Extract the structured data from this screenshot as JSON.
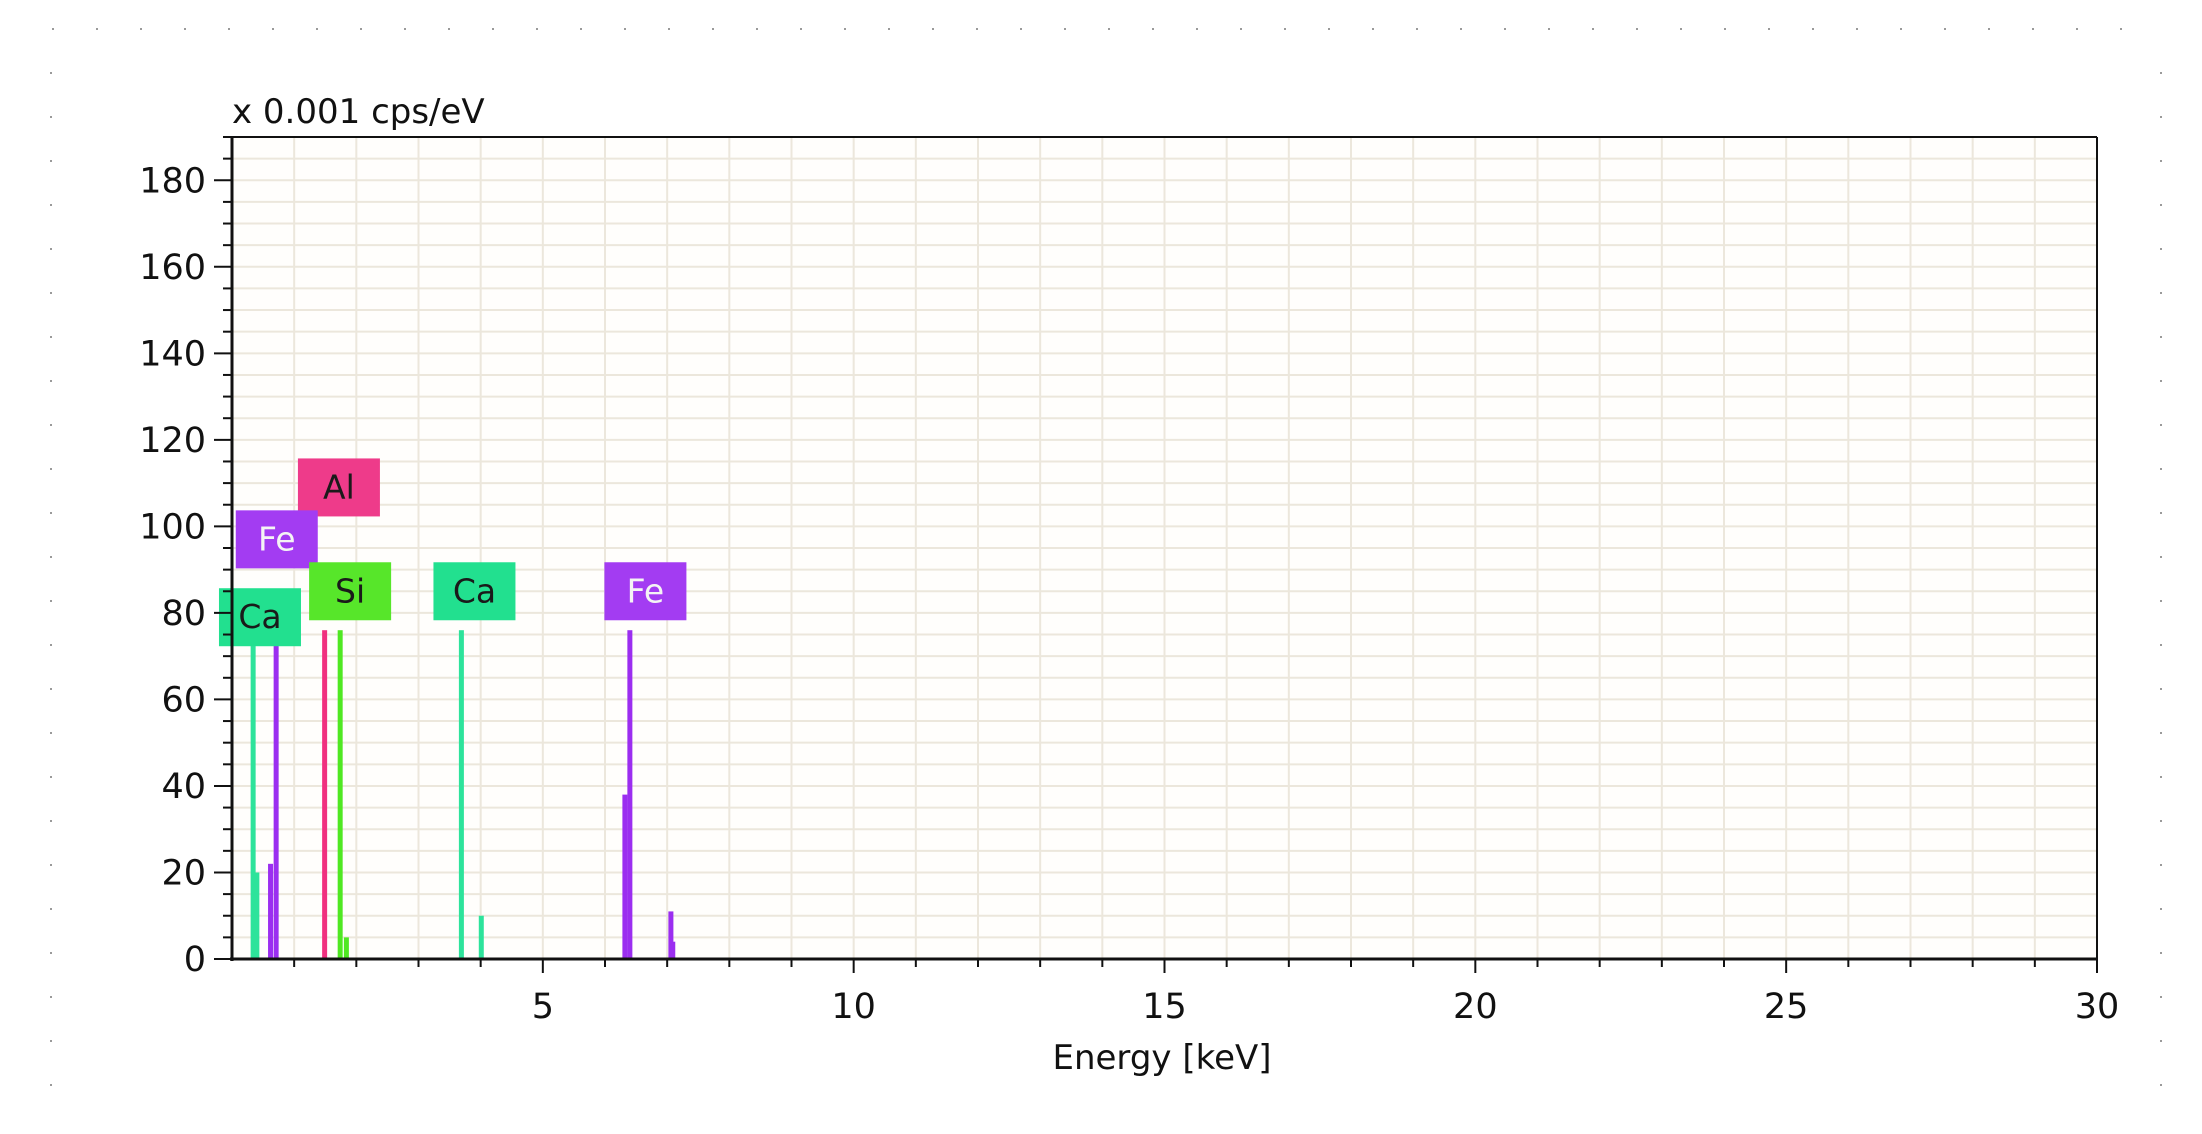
{
  "chart_data": {
    "type": "bar",
    "title": "x 0.001 cps/eV",
    "xlabel": "Energy [keV]",
    "ylabel": "",
    "xlim": [
      0,
      30
    ],
    "ylim": [
      0,
      190
    ],
    "x_ticks": [
      5,
      10,
      15,
      20,
      25,
      30
    ],
    "y_ticks": [
      0,
      20,
      40,
      60,
      80,
      100,
      120,
      140,
      160,
      180
    ],
    "grid": true,
    "colors": {
      "Ca": "#2de39b",
      "Fe": "#9b2ef0",
      "Al": "#f0307f",
      "Si": "#4fe822",
      "label_Ca": "#22e08f",
      "label_Fe": "#a33cf2",
      "label_Al": "#ee3b8a",
      "label_Si": "#57e62a",
      "label_text": "#1a1a1a",
      "label_text_light": "#f4f4f4"
    },
    "peaks": [
      {
        "element": "Ca",
        "energy": 0.34,
        "value": 75
      },
      {
        "element": "Ca",
        "energy": 0.4,
        "value": 20
      },
      {
        "element": "Fe",
        "energy": 0.62,
        "value": 22
      },
      {
        "element": "Fe",
        "energy": 0.71,
        "value": 75
      },
      {
        "element": "Al",
        "energy": 1.49,
        "value": 76
      },
      {
        "element": "Si",
        "energy": 1.74,
        "value": 76
      },
      {
        "element": "Si",
        "energy": 1.84,
        "value": 5
      },
      {
        "element": "Ca",
        "energy": 3.69,
        "value": 76
      },
      {
        "element": "Ca",
        "energy": 4.01,
        "value": 10
      },
      {
        "element": "Fe",
        "energy": 6.4,
        "value": 76
      },
      {
        "element": "Fe",
        "energy": 6.32,
        "value": 38
      },
      {
        "element": "Fe",
        "energy": 7.06,
        "value": 11
      },
      {
        "element": "Fe",
        "energy": 7.09,
        "value": 4
      }
    ],
    "peak_labels": [
      {
        "text": "Al",
        "element": "Al",
        "energy": 1.72,
        "value": 109
      },
      {
        "text": "Fe",
        "element": "Fe",
        "energy": 0.72,
        "value": 97
      },
      {
        "text": "Si",
        "element": "Si",
        "energy": 1.9,
        "value": 85
      },
      {
        "text": "Ca",
        "element": "Ca",
        "energy": 3.9,
        "value": 85
      },
      {
        "text": "Fe",
        "element": "Fe",
        "energy": 6.65,
        "value": 85
      },
      {
        "text": "Ca",
        "element": "Ca",
        "energy": 0.45,
        "value": 79
      }
    ]
  }
}
